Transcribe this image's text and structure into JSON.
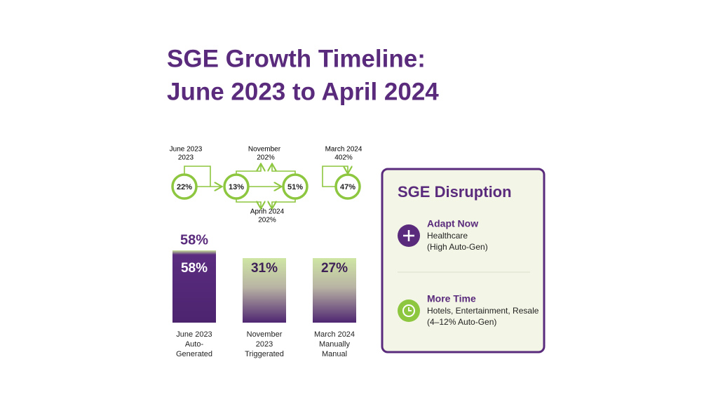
{
  "header": {
    "title_lines": [
      "SGE Growth Timeline:",
      "June 2023 to April 2024"
    ]
  },
  "timeline": {
    "nodes": [
      "22%",
      "13%",
      "51%",
      "47%"
    ],
    "labels": [
      {
        "lines": [
          "June 2023",
          "2023"
        ]
      },
      {
        "lines": [
          "November",
          "202%"
        ]
      },
      {
        "lines": [
          "March 2024",
          "402%"
        ]
      },
      {
        "lines": [
          "Aprih 2024",
          "202%"
        ]
      }
    ]
  },
  "bars": [
    {
      "top_label": "58%",
      "label": "58%",
      "caption": [
        "June 2023",
        "Auto-",
        "Generated"
      ]
    },
    {
      "label": "31%",
      "caption": [
        "November",
        "2023",
        "Triggerated"
      ]
    },
    {
      "label": "27%",
      "caption": [
        "March 2024",
        "Manually",
        "Manual"
      ]
    }
  ],
  "card": {
    "title": "SGE Disruption",
    "items": [
      {
        "heading": "Adapt Now",
        "lines": [
          "Healthcare",
          "(High Auto-Gen)"
        ]
      },
      {
        "heading": "More Time",
        "lines": [
          "Hotels, Entertainment, Resale",
          "(4–12% Auto-Gen)"
        ]
      }
    ]
  }
}
